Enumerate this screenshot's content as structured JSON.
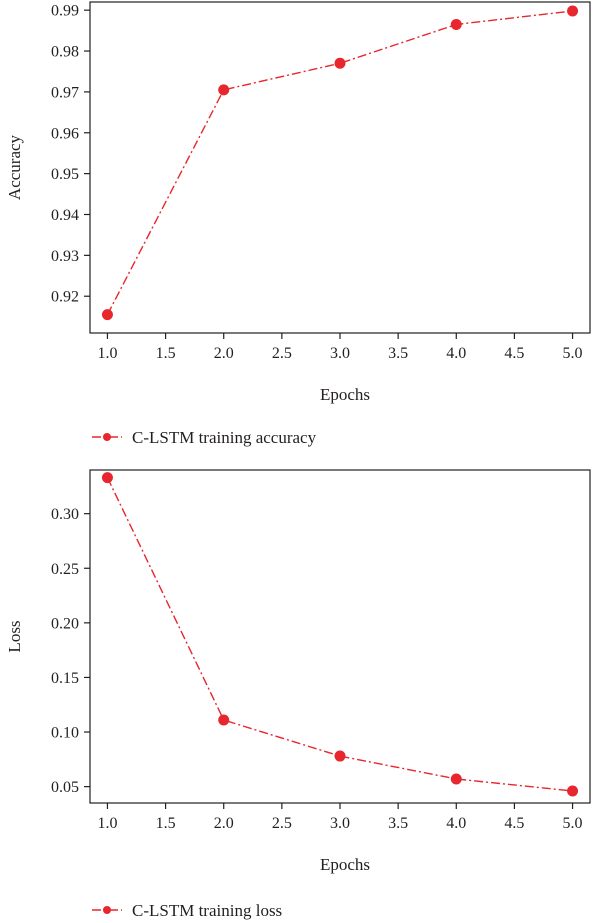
{
  "chart_data": [
    {
      "type": "line",
      "x": [
        1.0,
        2.0,
        3.0,
        4.0,
        5.0
      ],
      "series": [
        {
          "name": "C-LSTM training accuracy",
          "values": [
            0.9155,
            0.9705,
            0.977,
            0.9865,
            0.9898
          ],
          "color": "#e8262d"
        }
      ],
      "xlabel": "Epochs",
      "ylabel": "Accuracy",
      "xlim": [
        0.85,
        5.15
      ],
      "ylim": [
        0.911,
        0.992
      ],
      "xticks": [
        "1.0",
        "1.5",
        "2.0",
        "2.5",
        "3.0",
        "3.5",
        "4.0",
        "4.5",
        "5.0"
      ],
      "yticks": [
        "0.92",
        "0.93",
        "0.94",
        "0.95",
        "0.96",
        "0.97",
        "0.98",
        "0.99"
      ],
      "legend": "bottom-left",
      "grid": false
    },
    {
      "type": "line",
      "x": [
        1.0,
        2.0,
        3.0,
        4.0,
        5.0
      ],
      "series": [
        {
          "name": "C-LSTM training loss",
          "values": [
            0.333,
            0.111,
            0.078,
            0.057,
            0.046
          ],
          "color": "#e8262d"
        }
      ],
      "xlabel": "Epochs",
      "ylabel": "Loss",
      "xlim": [
        0.85,
        5.15
      ],
      "ylim": [
        0.035,
        0.34
      ],
      "xticks": [
        "1.0",
        "1.5",
        "2.0",
        "2.5",
        "3.0",
        "3.5",
        "4.0",
        "4.5",
        "5.0"
      ],
      "yticks": [
        "0.05",
        "0.10",
        "0.15",
        "0.20",
        "0.25",
        "0.30"
      ],
      "legend": "bottom-left",
      "grid": false
    }
  ]
}
